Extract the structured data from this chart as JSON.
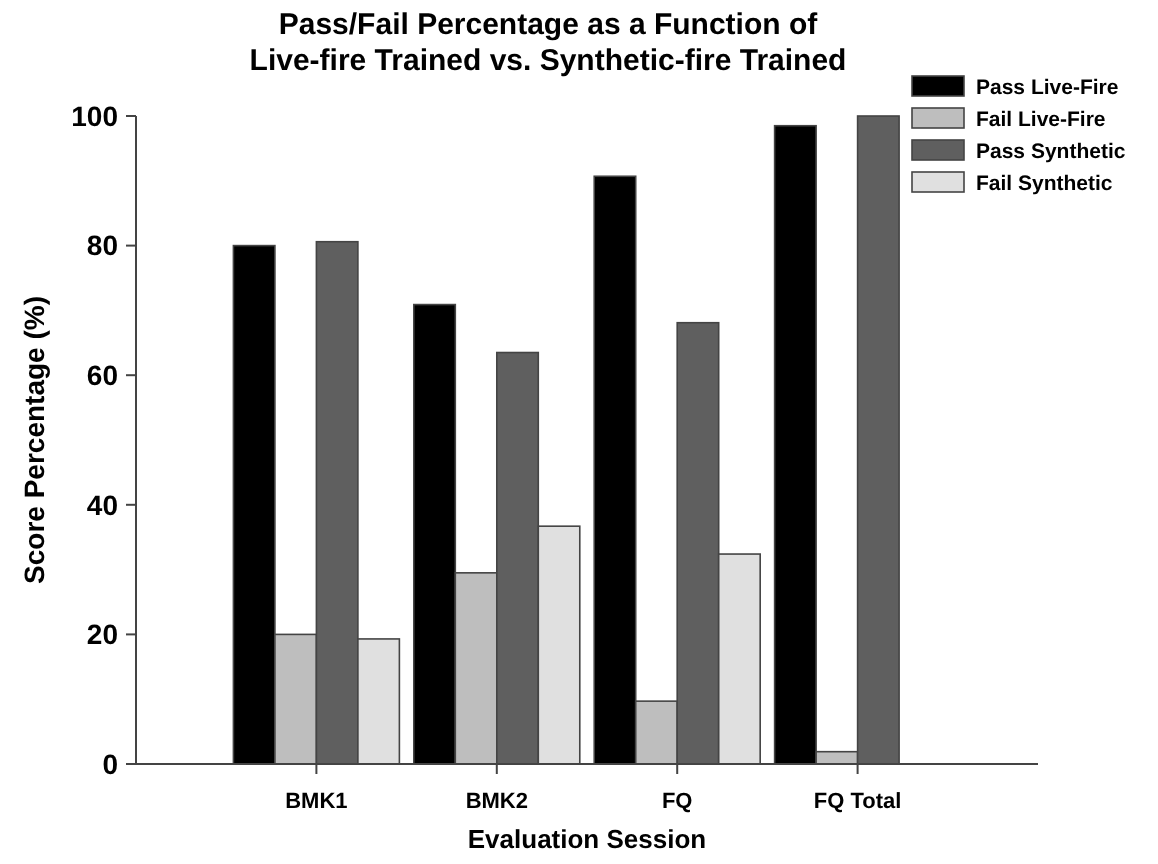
{
  "chart_data": {
    "type": "bar",
    "title": "Pass/Fail Percentage as a Function of\nLive-fire Trained vs. Synthetic-fire Trained",
    "xlabel": "Evaluation Session",
    "ylabel": "Score Percentage (%)",
    "categories": [
      "BMK1",
      "BMK2",
      "FQ",
      "FQ Total"
    ],
    "series": [
      {
        "name": "Pass Live-Fire",
        "color": "#000000",
        "values": [
          80,
          70.9,
          90.7,
          98.5
        ]
      },
      {
        "name": "Fail Live-Fire",
        "color": "#bebebe",
        "values": [
          20,
          29.5,
          9.7,
          1.9
        ]
      },
      {
        "name": "Pass Synthetic",
        "color": "#5f5f5f",
        "values": [
          80.6,
          63.5,
          68.1,
          100
        ]
      },
      {
        "name": "Fail Synthetic",
        "color": "#e0e0e0",
        "values": [
          19.3,
          36.7,
          32.4,
          0
        ]
      }
    ],
    "ylim": [
      0,
      100
    ],
    "yticks": [
      0,
      20,
      40,
      60,
      80,
      100
    ],
    "grid": false,
    "legend": "top right"
  }
}
